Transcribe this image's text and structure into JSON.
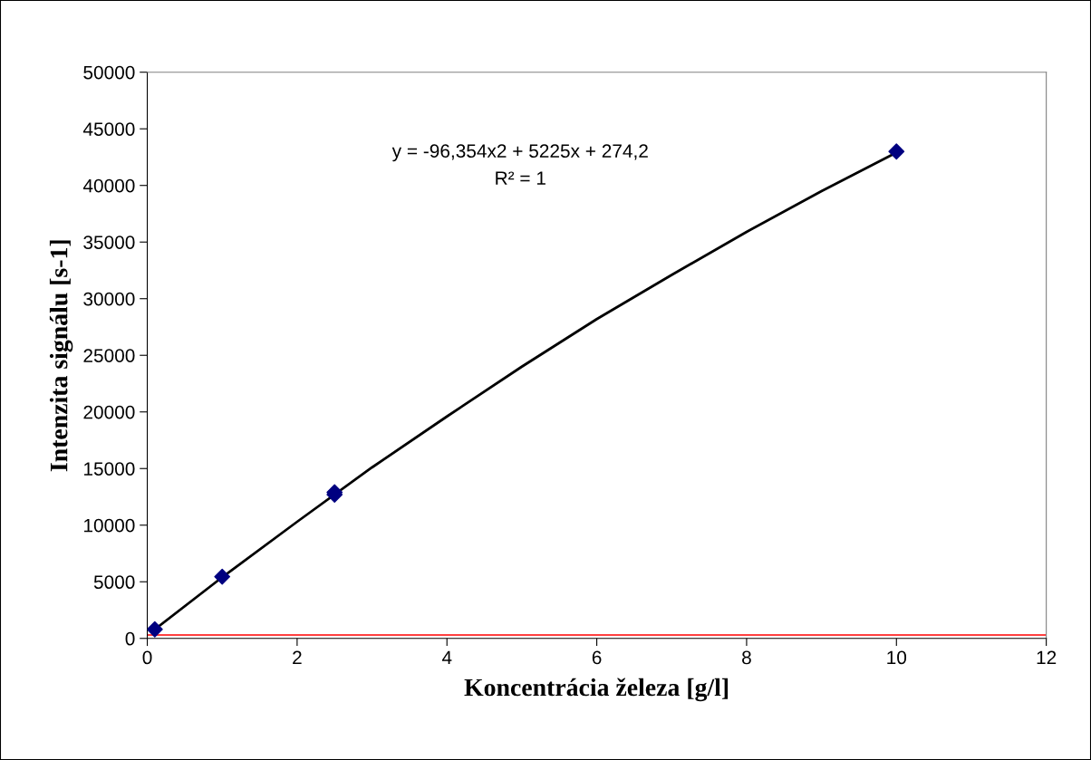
{
  "chart_data": {
    "type": "scatter",
    "xlabel": "Koncentrácia železa [g/l]",
    "ylabel": "Intenzita signálu [s-1]",
    "x": [
      0.1,
      1,
      2.5,
      2.5,
      10
    ],
    "series": [
      {
        "color": "#000080",
        "marker": "diamond",
        "values": [
          800,
          5450,
          12700,
          12900,
          43000
        ]
      },
      {
        "type": "line",
        "color": "#000000",
        "marker": "none",
        "x": [
          0.1,
          1,
          2,
          3,
          4,
          5,
          6,
          7,
          8,
          9,
          10
        ],
        "values": [
          800,
          5400,
          10300,
          15100,
          19600,
          24000,
          28200,
          32100,
          35900,
          39500,
          42900
        ]
      }
    ],
    "annotations": [
      "y = -96,354x2 + 5225x + 274,2",
      "R² = 1"
    ],
    "ref_lines": [
      {
        "axis": "y",
        "value": 300,
        "color": "#ff0000"
      }
    ],
    "xlim": [
      0,
      12
    ],
    "xticks": [
      0,
      2,
      4,
      6,
      8,
      10,
      12
    ],
    "ylim": [
      0,
      50000
    ],
    "yticks": [
      0,
      5000,
      10000,
      15000,
      20000,
      25000,
      30000,
      35000,
      40000,
      45000,
      50000
    ],
    "grid": false,
    "legend": false
  }
}
